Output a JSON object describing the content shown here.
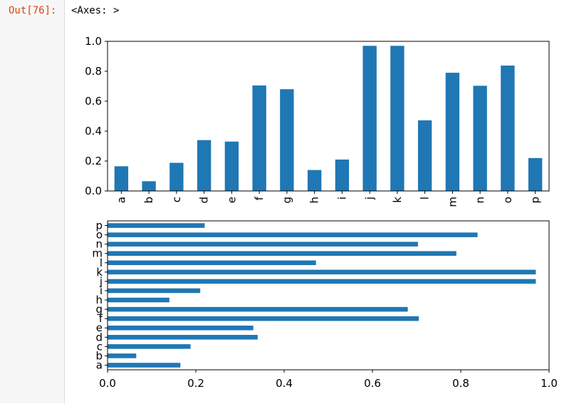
{
  "cell": {
    "prompt": "Out[76]:",
    "output_text": "<Axes: >"
  },
  "colors": {
    "bar": "#1f77b4",
    "prompt": "#d84315"
  },
  "chart_data": [
    {
      "type": "bar",
      "orientation": "vertical",
      "categories": [
        "a",
        "b",
        "c",
        "d",
        "e",
        "f",
        "g",
        "h",
        "i",
        "j",
        "k",
        "l",
        "m",
        "n",
        "o",
        "p"
      ],
      "values": [
        0.165,
        0.065,
        0.188,
        0.34,
        0.33,
        0.705,
        0.68,
        0.14,
        0.21,
        0.97,
        0.97,
        0.472,
        0.79,
        0.703,
        0.838,
        0.22
      ],
      "ylim": [
        0,
        1.0
      ],
      "yticks": [
        "0.0",
        "0.2",
        "0.4",
        "0.6",
        "0.8",
        "1.0"
      ],
      "title": "",
      "xlabel": "",
      "ylabel": "",
      "grid": false
    },
    {
      "type": "bar",
      "orientation": "horizontal",
      "categories": [
        "a",
        "b",
        "c",
        "d",
        "e",
        "f",
        "g",
        "h",
        "i",
        "j",
        "k",
        "l",
        "m",
        "n",
        "o",
        "p"
      ],
      "values": [
        0.165,
        0.065,
        0.188,
        0.34,
        0.33,
        0.705,
        0.68,
        0.14,
        0.21,
        0.97,
        0.97,
        0.472,
        0.79,
        0.703,
        0.838,
        0.22
      ],
      "xlim": [
        0,
        1.0
      ],
      "xticks": [
        "0.0",
        "0.2",
        "0.4",
        "0.6",
        "0.8",
        "1.0"
      ],
      "title": "",
      "xlabel": "",
      "ylabel": "",
      "grid": false
    }
  ]
}
